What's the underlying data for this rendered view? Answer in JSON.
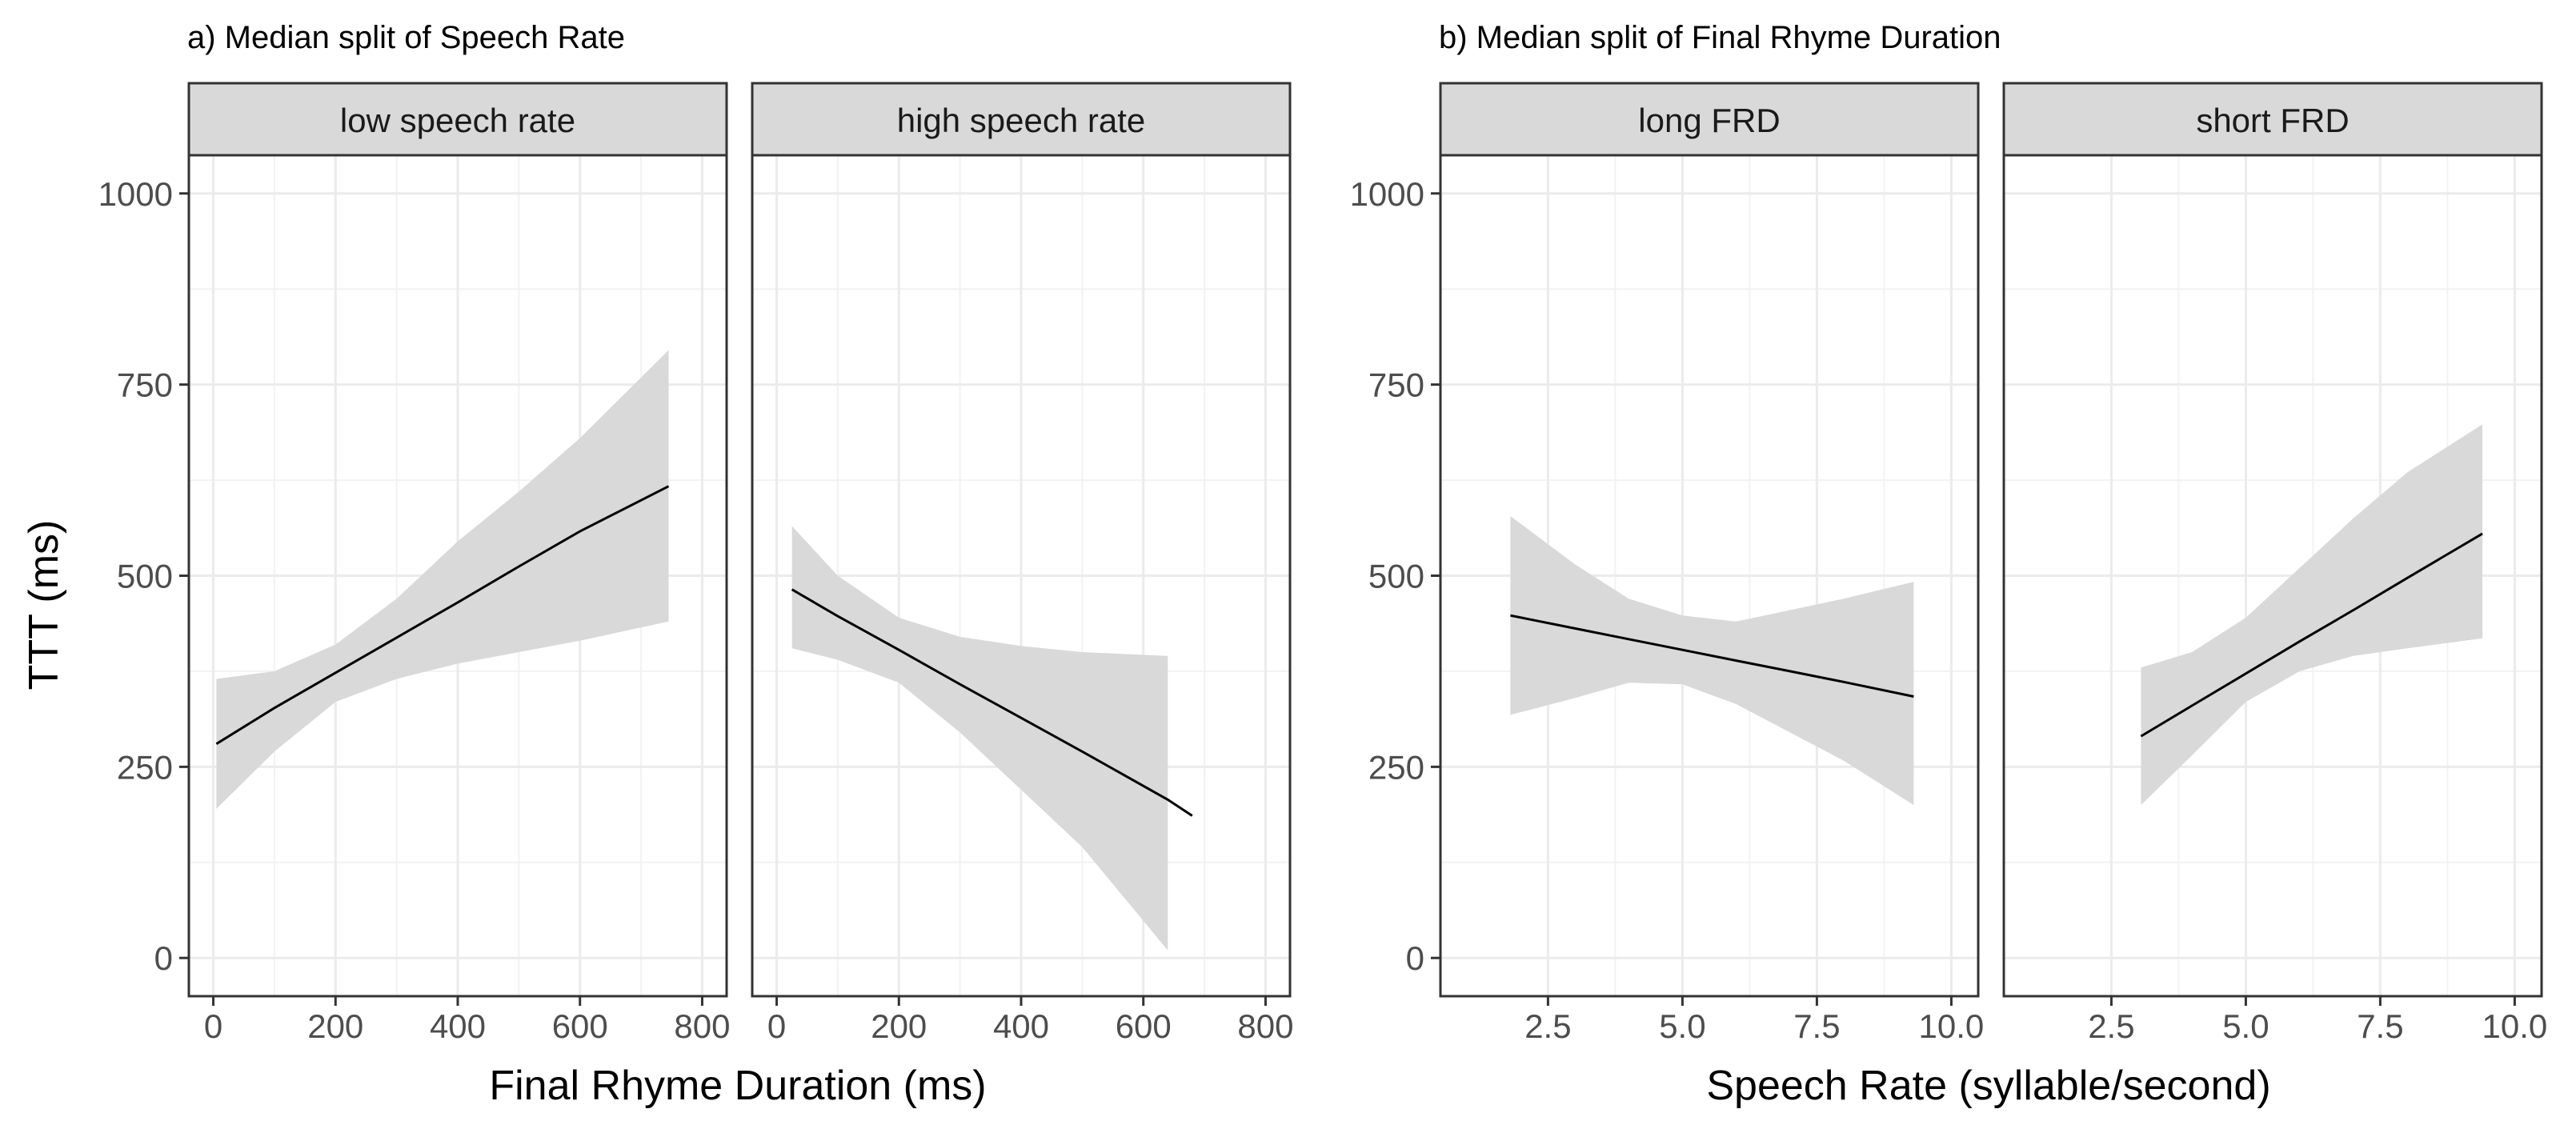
{
  "chart_data": [
    {
      "type": "line",
      "title": "a) Median split of Speech Rate",
      "xlabel": "Final Rhyme Duration (ms)",
      "ylabel": "TTT (ms)",
      "xlim": [
        -40,
        840
      ],
      "ylim": [
        -50,
        1050
      ],
      "xticks": [
        0,
        200,
        400,
        600,
        800
      ],
      "xtick_labels": [
        "0",
        "200",
        "400",
        "600",
        "800"
      ],
      "yticks": [
        0,
        250,
        500,
        750,
        1000
      ],
      "ytick_labels": [
        "0",
        "250",
        "500",
        "750",
        "1000"
      ],
      "grid": true,
      "series": [
        {
          "name": "low speech rate",
          "x": [
            5,
            100,
            200,
            300,
            400,
            500,
            600,
            745
          ],
          "y": [
            280,
            327,
            373,
            419,
            465,
            512,
            558,
            617
          ],
          "ci_lower": [
            195,
            270,
            335,
            365,
            385,
            400,
            415,
            440
          ],
          "ci_upper": [
            365,
            375,
            410,
            470,
            545,
            610,
            680,
            795
          ]
        },
        {
          "name": "high speech rate",
          "x": [
            25,
            100,
            200,
            300,
            400,
            500,
            640,
            680
          ],
          "y": [
            482,
            447,
            403,
            358,
            314,
            270,
            207,
            186
          ],
          "ci_lower": [
            405,
            390,
            360,
            295,
            220,
            145,
            10
          ],
          "ci_upper": [
            565,
            500,
            445,
            420,
            408,
            400,
            395
          ],
          "ci_x": [
            25,
            100,
            200,
            300,
            400,
            500,
            640
          ]
        }
      ]
    },
    {
      "type": "line",
      "title": "b) Median split of Final Rhyme Duration",
      "xlabel": "Speech Rate (syllable/second)",
      "ylabel": "TTT (ms)",
      "xlim": [
        0.5,
        10.5
      ],
      "ylim": [
        -50,
        1050
      ],
      "xticks": [
        2.5,
        5.0,
        7.5,
        10.0
      ],
      "xtick_labels": [
        "2.5",
        "5.0",
        "7.5",
        "10.0"
      ],
      "yticks": [
        0,
        250,
        500,
        750,
        1000
      ],
      "ytick_labels": [
        "0",
        "250",
        "500",
        "750",
        "1000"
      ],
      "grid": true,
      "series": [
        {
          "name": "long FRD",
          "x": [
            1.8,
            3,
            4,
            5,
            6,
            7,
            8,
            9.3
          ],
          "y": [
            448,
            431,
            417,
            403,
            389,
            375,
            361,
            342
          ],
          "ci_lower": [
            318,
            340,
            360,
            358,
            332,
            295,
            258,
            200
          ],
          "ci_upper": [
            578,
            515,
            470,
            448,
            440,
            455,
            470,
            492
          ]
        },
        {
          "name": "short FRD",
          "x": [
            3.05,
            4,
            5,
            6,
            7,
            8,
            9.4
          ],
          "y": [
            290,
            330,
            372,
            414,
            455,
            497,
            555
          ],
          "ci_lower": [
            200,
            265,
            335,
            375,
            395,
            405,
            418
          ],
          "ci_upper": [
            380,
            400,
            445,
            510,
            575,
            635,
            698
          ]
        }
      ]
    }
  ]
}
